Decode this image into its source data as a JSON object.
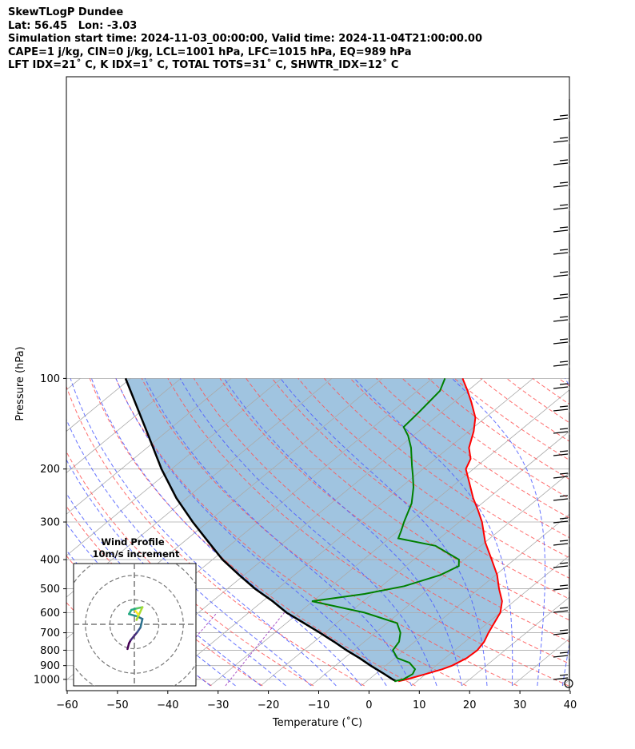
{
  "header": {
    "lines": [
      "SkewTLogP Dundee",
      "Lat: 56.45   Lon: -3.03",
      "Simulation start time: 2024-11-03_00:00:00, Valid time: 2024-11-04T21:00:00.00",
      "CAPE=1 j/kg, CIN=0 j/kg, LCL=1001 hPa, LFC=1015 hPa, EQ=989 hPa",
      "LFT IDX=21˚ C, K IDX=1˚ C, TOTAL TOTS=31˚ C, SHWTR_IDX=12˚ C"
    ]
  },
  "chart_data": [
    {
      "type": "line",
      "chart": "skew-t log-p",
      "xlabel": "Temperature (˚C)",
      "ylabel": "Pressure (hPa)",
      "xlim": [
        -60,
        40
      ],
      "ylim": [
        1050,
        100
      ],
      "yscale": "log",
      "skew_deg_per_decade": 72.6,
      "x_ticks": [
        "−60",
        "−50",
        "−40",
        "−30",
        "−20",
        "−10",
        "0",
        "10",
        "20",
        "30",
        "40"
      ],
      "x_tick_values": [
        -60,
        -50,
        -40,
        -30,
        -20,
        -10,
        0,
        10,
        20,
        30,
        40
      ],
      "y_ticks": [
        "1000",
        "900",
        "800",
        "700",
        "600",
        "500",
        "400",
        "300",
        "200",
        "100"
      ],
      "y_tick_values": [
        1000,
        900,
        800,
        700,
        600,
        500,
        400,
        300,
        200,
        100
      ],
      "grid": true,
      "colors": {
        "temperature": "#ff0000",
        "dewpoint": "#008000",
        "parcel": "#000000",
        "cape_fill": "#a0c4e0",
        "dry_adiabat": "#ff5555",
        "moist_adiabat": "#4b5bff",
        "mixing_ratio": "#a040c0",
        "isotherm": "#aaaaaa"
      },
      "series": [
        {
          "role": "temperature",
          "points": [
            [
              1015,
              6.3
            ],
            [
              1000,
              7.5
            ],
            [
              960,
              10.0
            ],
            [
              925,
              12.1
            ],
            [
              900,
              13.2
            ],
            [
              850,
              14.3
            ],
            [
              800,
              14.5
            ],
            [
              750,
              13.8
            ],
            [
              700,
              12.5
            ],
            [
              650,
              11.3
            ],
            [
              600,
              10.0
            ],
            [
              550,
              7.6
            ],
            [
              500,
              4.0
            ],
            [
              450,
              0.3
            ],
            [
              400,
              -4.5
            ],
            [
              350,
              -10.0
            ],
            [
              300,
              -15.5
            ],
            [
              275,
              -19.0
            ],
            [
              250,
              -23.0
            ],
            [
              225,
              -27.0
            ],
            [
              200,
              -31.5
            ],
            [
              185,
              -33.0
            ],
            [
              170,
              -36.0
            ],
            [
              150,
              -39.0
            ],
            [
              135,
              -42.0
            ],
            [
              120,
              -46.5
            ],
            [
              110,
              -50.0
            ],
            [
              100,
              -54.0
            ]
          ]
        },
        {
          "role": "dewpoint",
          "points": [
            [
              1015,
              5.5
            ],
            [
              1000,
              6.8
            ],
            [
              960,
              7.4
            ],
            [
              925,
              6.7
            ],
            [
              880,
              4.0
            ],
            [
              850,
              0.5
            ],
            [
              800,
              -2.3
            ],
            [
              750,
              -3.1
            ],
            [
              700,
              -5.0
            ],
            [
              650,
              -8.0
            ],
            [
              600,
              -17.0
            ],
            [
              550,
              -30.2
            ],
            [
              520,
              -21.5
            ],
            [
              490,
              -15.5
            ],
            [
              450,
              -11.0
            ],
            [
              420,
              -9.5
            ],
            [
              400,
              -11.0
            ],
            [
              360,
              -19.0
            ],
            [
              340,
              -28.2
            ],
            [
              320,
              -29.5
            ],
            [
              300,
              -31.0
            ],
            [
              260,
              -34.0
            ],
            [
              230,
              -37.5
            ],
            [
              210,
              -40.5
            ],
            [
              195,
              -43.0
            ],
            [
              170,
              -47.5
            ],
            [
              155,
              -51.0
            ],
            [
              145,
              -54.0
            ],
            [
              130,
              -54.5
            ],
            [
              110,
              -55.5
            ],
            [
              100,
              -57.5
            ]
          ]
        },
        {
          "role": "parcel",
          "points": [
            [
              1015,
              5.9
            ],
            [
              1000,
              4.7
            ],
            [
              950,
              1.0
            ],
            [
              900,
              -3.0
            ],
            [
              850,
              -7.0
            ],
            [
              800,
              -11.5
            ],
            [
              750,
              -16.0
            ],
            [
              700,
              -21.0
            ],
            [
              650,
              -26.5
            ],
            [
              600,
              -32.5
            ],
            [
              550,
              -38.0
            ],
            [
              500,
              -44.5
            ],
            [
              450,
              -51.0
            ],
            [
              400,
              -58.0
            ],
            [
              350,
              -65.0
            ],
            [
              300,
              -73.0
            ],
            [
              250,
              -82.0
            ],
            [
              200,
              -92.0
            ],
            [
              150,
              -104.0
            ],
            [
              100,
              -121.0
            ]
          ]
        }
      ]
    },
    {
      "type": "line",
      "chart": "hodograph",
      "title": "Wind Profile",
      "subtitle": "10m/s increment",
      "ring_spacing": 10,
      "rings": [
        10,
        20,
        30
      ],
      "xlim": [
        -25,
        25
      ],
      "ylim": [
        -25,
        25
      ],
      "points": [
        [
          -2.8,
          -10.1
        ],
        [
          -2.2,
          -7.8
        ],
        [
          -1.5,
          -6.5
        ],
        [
          -0.3,
          -5.0
        ],
        [
          1.2,
          -3.2
        ],
        [
          2.5,
          -1.3
        ],
        [
          3.3,
          2.2
        ],
        [
          1.0,
          3.3
        ],
        [
          -2.2,
          4.2
        ],
        [
          -1.2,
          5.9
        ],
        [
          1.0,
          6.5
        ],
        [
          3.3,
          7.0
        ],
        [
          0.9,
          1.8
        ],
        [
          1.7,
          4.0
        ],
        [
          0.4,
          5.5
        ]
      ]
    }
  ]
}
